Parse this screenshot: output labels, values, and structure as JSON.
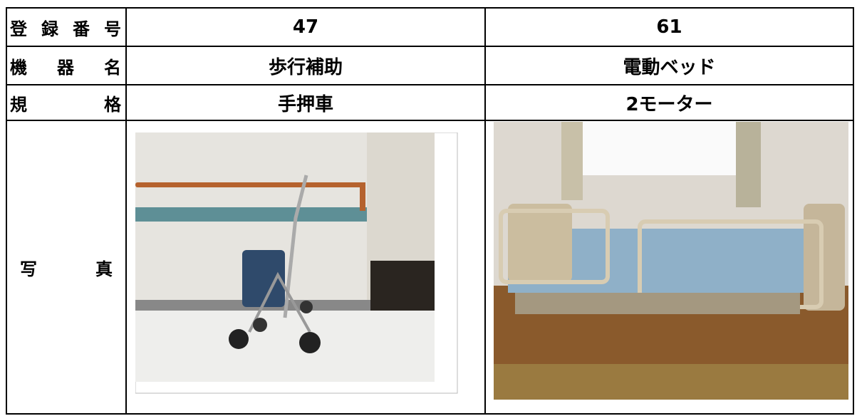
{
  "table": {
    "rows": [
      [
        "登録番号",
        "47",
        "61"
      ],
      [
        "機器名",
        "歩行補助",
        "電動ベッド"
      ],
      [
        "規格",
        "手押車",
        "2モーター"
      ],
      [
        "写真"
      ]
    ]
  }
}
